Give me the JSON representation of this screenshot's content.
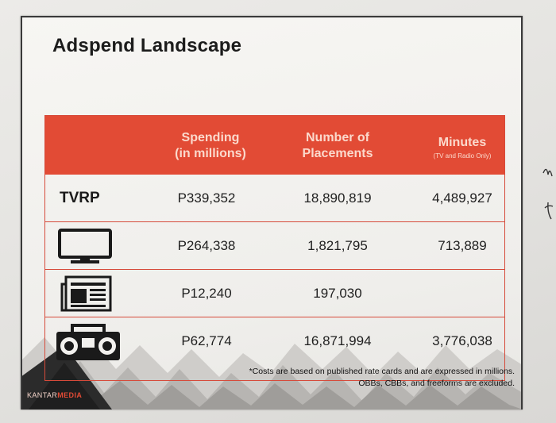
{
  "slide": {
    "title": "Adspend Landscape"
  },
  "table": {
    "headers": [
      {
        "line1": "Spending",
        "line2": "(in millions)",
        "sub": ""
      },
      {
        "line1": "Number of",
        "line2": "Placements",
        "sub": ""
      },
      {
        "line1": "Minutes",
        "line2": "",
        "sub": "(TV and Radio Only)"
      }
    ],
    "rows": [
      {
        "label": "TVRP",
        "icon": "tvrp-text",
        "spending": "P339,352",
        "placements": "18,890,819",
        "minutes": "4,489,927"
      },
      {
        "label": "",
        "icon": "tv-monitor-icon",
        "spending": "P264,338",
        "placements": "1,821,795",
        "minutes": "713,889"
      },
      {
        "label": "",
        "icon": "newspaper-icon",
        "spending": "P12,240",
        "placements": "197,030",
        "minutes": ""
      },
      {
        "label": "",
        "icon": "radio-boombox-icon",
        "spending": "P62,774",
        "placements": "16,871,994",
        "minutes": "3,776,038"
      }
    ]
  },
  "footnote": {
    "line1": "*Costs are based on published rate cards and are expressed in millions.",
    "line2": "OBBs, CBBs, and freeforms are excluded."
  },
  "logo": {
    "part1": "KANTAR",
    "part2": "MEDIA"
  },
  "colors": {
    "header_red": "#e24b35",
    "border_red": "#d64a3a",
    "header_text": "#fbd9cc"
  }
}
